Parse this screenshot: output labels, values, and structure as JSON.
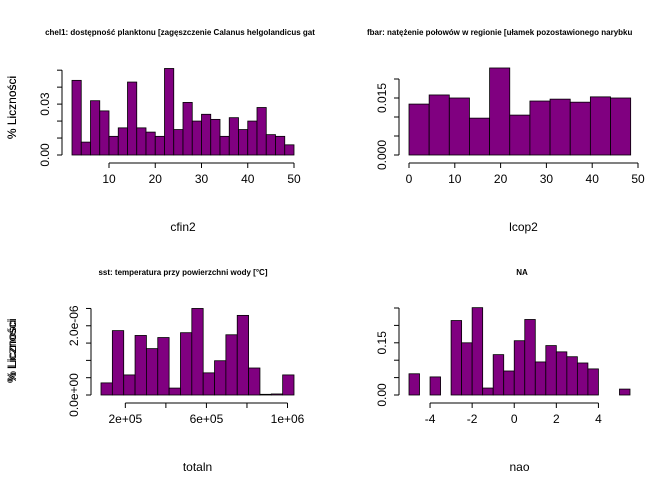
{
  "chart_data": [
    {
      "type": "histogram",
      "title": "chel1: dostępność planktonu [zagęszczenie Calanus helgolandicus gat",
      "xlabel": "cfin2",
      "ylabel": "% Liczności",
      "color": "#800080",
      "bins": [
        2,
        4,
        6,
        8,
        10,
        12,
        14,
        16,
        18,
        20,
        22,
        24,
        26,
        28,
        30,
        32,
        34,
        36,
        38,
        40,
        42,
        44,
        46,
        48,
        50
      ],
      "values": [
        0.044,
        0.0076,
        0.032,
        0.026,
        0.011,
        0.016,
        0.043,
        0.016,
        0.0135,
        0.011,
        0.051,
        0.015,
        0.031,
        0.02,
        0.024,
        0.021,
        0.011,
        0.022,
        0.015,
        0.02,
        0.028,
        0.012,
        0.011,
        0.006
      ],
      "xlim": [
        2,
        50
      ],
      "ylim": [
        0,
        0.056
      ],
      "xticks": [
        10,
        20,
        30,
        40,
        50
      ],
      "yticks": [
        {
          "value": 0,
          "label": "0.00"
        },
        {
          "value": 0.03,
          "label": "0.03"
        }
      ],
      "yminor": [
        0.01,
        0.02,
        0.04,
        0.05
      ]
    },
    {
      "type": "histogram",
      "title": "fbar: natężenie połowów w regionie [ułamek pozostawionego narybku",
      "xlabel": "lcop2",
      "ylabel": "% Liczności",
      "color": "#800080",
      "bins": [
        0,
        4.4,
        8.8,
        13.2,
        17.6,
        22,
        26.4,
        30.8,
        35.2,
        39.6,
        44,
        48.4
      ],
      "values": [
        0.0134,
        0.0158,
        0.015,
        0.0097,
        0.0229,
        0.0105,
        0.0142,
        0.0147,
        0.0139,
        0.0153,
        0.015
      ],
      "xlim": [
        0,
        50
      ],
      "ylim": [
        0,
        0.025
      ],
      "xticks": [
        0,
        10,
        20,
        30,
        40,
        50
      ],
      "yticks": [
        {
          "value": 0,
          "label": "0.000"
        },
        {
          "value": 0.015,
          "label": "0.015"
        }
      ],
      "yminor": [
        0.005,
        0.01,
        0.02
      ]
    },
    {
      "type": "histogram",
      "title": "sst: temperatura przy powierzchni wody [°C]",
      "xlabel": "totaln",
      "ylabel": "% Liczności",
      "color": "#800080",
      "bins": [
        80000,
        136000,
        192000,
        248000,
        304000,
        360000,
        416000,
        472000,
        528000,
        584000,
        640000,
        696000,
        752000,
        808000,
        864000,
        920000,
        976000,
        1032000
      ],
      "values": [
        3.5e-07,
        1.86e-06,
        5.8e-07,
        1.72e-06,
        1.34e-06,
        1.66e-06,
        2e-07,
        1.8e-06,
        2.5e-06,
        6.4e-07,
        9.9e-07,
        1.74e-06,
        2.3e-06,
        7.8e-07,
        2e-08,
        3e-08,
        5.8e-07
      ],
      "xlim": [
        80000,
        1032000
      ],
      "ylim": [
        0,
        2.6e-06
      ],
      "xticks": [
        {
          "value": 200000,
          "label": "2e+05"
        },
        {
          "value": 600000,
          "label": "6e+05"
        },
        {
          "value": 1000000,
          "label": "1e+06"
        }
      ],
      "xminor": [
        400000,
        800000
      ],
      "yticks": [
        {
          "value": 0,
          "label": "0.0e+00"
        },
        {
          "value": 2e-06,
          "label": "2.0e-06"
        }
      ],
      "yminor": [
        5e-07,
        1e-06,
        1.5e-06,
        2.5e-06
      ]
    },
    {
      "type": "histogram",
      "title": "NA",
      "xlabel": "nao",
      "ylabel": "% Liczności",
      "color": "#800080",
      "bins": [
        -5,
        -4.5,
        -4,
        -3.5,
        -3,
        -2.5,
        -2,
        -1.5,
        -1,
        -0.5,
        0,
        0.5,
        1,
        1.5,
        2,
        2.5,
        3,
        3.5,
        4,
        4.5,
        5,
        5.5
      ],
      "values": [
        0.061,
        0,
        0.052,
        0,
        0.214,
        0.15,
        0.251,
        0.02,
        0.116,
        0.069,
        0.156,
        0.217,
        0.095,
        0.142,
        0.124,
        0.11,
        0.092,
        0.075,
        0,
        0,
        0.017
      ],
      "xlim": [
        -5,
        5.5
      ],
      "ylim": [
        0,
        0.25
      ],
      "xticks": [
        -4,
        -2,
        0,
        2,
        4
      ],
      "yticks": [
        {
          "value": 0,
          "label": "0.00"
        },
        {
          "value": 0.15,
          "label": "0.15"
        }
      ],
      "yminor": [
        0.05,
        0.1,
        0.2,
        0.25
      ]
    }
  ]
}
